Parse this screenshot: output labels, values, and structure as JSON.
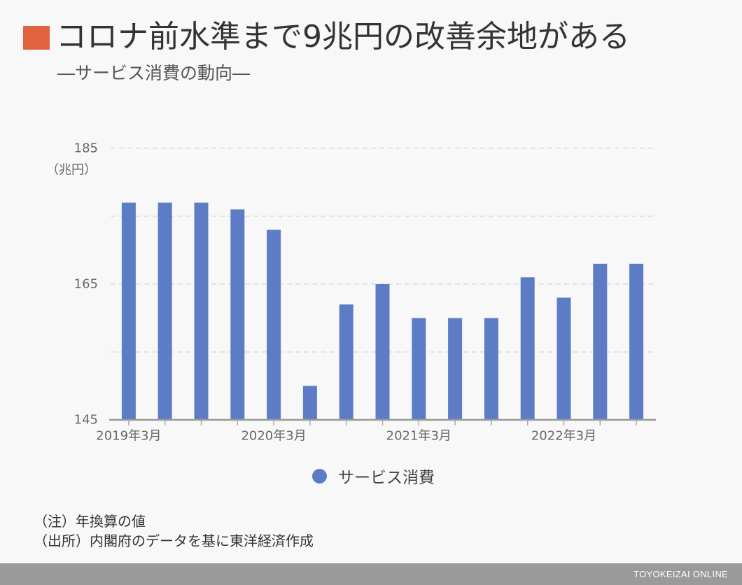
{
  "theme": {
    "title_marker_color": "#e0643f",
    "footer_color": "#9a9a9a"
  },
  "chart_data": {
    "type": "bar",
    "title": "コロナ前水準まで9兆円の改善余地がある",
    "subtitle": "―サービス消費の動向―",
    "ylabel": "（兆円）",
    "ylim": [
      145,
      185
    ],
    "yticks": [
      145,
      165,
      185
    ],
    "grid": true,
    "legend": "bottom",
    "categories": [
      "2019年3月",
      "",
      "",
      "",
      "2020年3月",
      "",
      "",
      "",
      "2021年3月",
      "",
      "",
      "",
      "2022年3月",
      "",
      ""
    ],
    "series": [
      {
        "name": "サービス消費",
        "color": "#5d7cc6",
        "values": [
          177,
          177,
          177,
          176,
          173,
          150,
          162,
          165,
          160,
          160,
          160,
          166,
          163,
          168,
          168
        ]
      }
    ]
  },
  "notes": {
    "note": "（注）年換算の値",
    "source": "（出所）内閣府のデータを基に東洋経済作成"
  },
  "footer": {
    "brand": "TOYOKEIZAI ONLINE"
  }
}
